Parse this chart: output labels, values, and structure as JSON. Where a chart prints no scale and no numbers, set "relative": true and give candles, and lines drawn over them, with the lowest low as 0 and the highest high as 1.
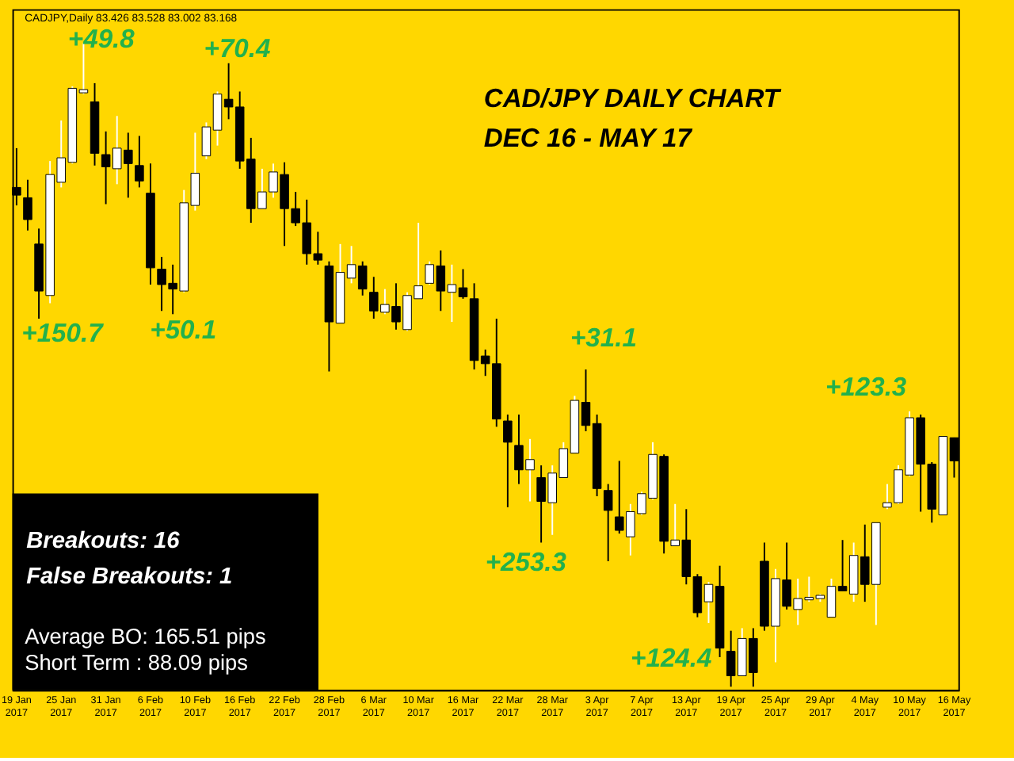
{
  "chart_data": {
    "type": "candlestick",
    "relative": true,
    "title": "CAD/JPY DAILY CHART",
    "subtitle": "DEC 16 - MAY 17",
    "categories": [
      "19 Jan 2017",
      null,
      null,
      null,
      "25 Jan 2017",
      null,
      null,
      null,
      "31 Jan 2017",
      null,
      null,
      null,
      "6 Feb 2017",
      null,
      null,
      null,
      "10 Feb 2017",
      null,
      null,
      null,
      "16 Feb 2017",
      null,
      null,
      null,
      "22 Feb 2017",
      null,
      null,
      null,
      "28 Feb 2017",
      null,
      null,
      null,
      "6 Mar 2017",
      null,
      null,
      null,
      "10 Mar 2017",
      null,
      null,
      null,
      "16 Mar 2017",
      null,
      null,
      null,
      "22 Mar 2017",
      null,
      null,
      null,
      "28 Mar 2017",
      null,
      null,
      null,
      "3 Apr 2017",
      null,
      null,
      null,
      "7 Apr 2017",
      null,
      null,
      null,
      "13 Apr 2017",
      null,
      null,
      null,
      "19 Apr 2017",
      null,
      null,
      null,
      "25 Apr 2017",
      null,
      null,
      null,
      "29 Apr 2017",
      null,
      null,
      null,
      "4 May 2017",
      null,
      null,
      null,
      "10 May 2017",
      null,
      null,
      null,
      "16 May 2017"
    ],
    "ohlc": [
      [
        0.776,
        0.837,
        0.748,
        0.764
      ],
      [
        0.76,
        0.788,
        0.709,
        0.726
      ],
      [
        0.688,
        0.712,
        0.572,
        0.615
      ],
      [
        0.608,
        0.817,
        0.596,
        0.796
      ],
      [
        0.784,
        0.88,
        0.776,
        0.822
      ],
      [
        0.815,
        0.933,
        0.813,
        0.93
      ],
      [
        0.923,
        1.0,
        0.921,
        0.928
      ],
      [
        0.909,
        0.938,
        0.81,
        0.829
      ],
      [
        0.827,
        0.863,
        0.75,
        0.808
      ],
      [
        0.805,
        0.887,
        0.781,
        0.837
      ],
      [
        0.834,
        0.861,
        0.76,
        0.813
      ],
      [
        0.81,
        0.856,
        0.776,
        0.786
      ],
      [
        0.767,
        0.813,
        0.625,
        0.651
      ],
      [
        0.649,
        0.668,
        0.584,
        0.625
      ],
      [
        0.627,
        0.656,
        0.579,
        0.618
      ],
      [
        0.615,
        0.772,
        0.613,
        0.752
      ],
      [
        0.748,
        0.861,
        0.74,
        0.798
      ],
      [
        0.825,
        0.877,
        0.82,
        0.87
      ],
      [
        0.865,
        0.925,
        0.841,
        0.921
      ],
      [
        0.913,
        0.969,
        0.882,
        0.901
      ],
      [
        0.901,
        0.925,
        0.805,
        0.817
      ],
      [
        0.82,
        0.853,
        0.721,
        0.743
      ],
      [
        0.743,
        0.805,
        0.743,
        0.769
      ],
      [
        0.769,
        0.813,
        0.76,
        0.8
      ],
      [
        0.796,
        0.815,
        0.685,
        0.743
      ],
      [
        0.743,
        0.769,
        0.716,
        0.721
      ],
      [
        0.721,
        0.757,
        0.656,
        0.673
      ],
      [
        0.673,
        0.707,
        0.656,
        0.663
      ],
      [
        0.654,
        0.661,
        0.49,
        0.567
      ],
      [
        0.565,
        0.688,
        0.565,
        0.644
      ],
      [
        0.635,
        0.685,
        0.627,
        0.656
      ],
      [
        0.654,
        0.661,
        0.608,
        0.618
      ],
      [
        0.613,
        0.637,
        0.572,
        0.584
      ],
      [
        0.582,
        0.618,
        0.579,
        0.594
      ],
      [
        0.591,
        0.627,
        0.555,
        0.567
      ],
      [
        0.555,
        0.613,
        0.553,
        0.608
      ],
      [
        0.603,
        0.721,
        0.603,
        0.623
      ],
      [
        0.627,
        0.661,
        0.625,
        0.656
      ],
      [
        0.654,
        0.678,
        0.584,
        0.615
      ],
      [
        0.613,
        0.656,
        0.567,
        0.625
      ],
      [
        0.62,
        0.649,
        0.603,
        0.606
      ],
      [
        0.603,
        0.627,
        0.493,
        0.507
      ],
      [
        0.514,
        0.524,
        0.483,
        0.502
      ],
      [
        0.502,
        0.572,
        0.404,
        0.416
      ],
      [
        0.413,
        0.423,
        0.279,
        0.38
      ],
      [
        0.375,
        0.423,
        0.315,
        0.337
      ],
      [
        0.337,
        0.385,
        0.288,
        0.353
      ],
      [
        0.325,
        0.344,
        0.224,
        0.288
      ],
      [
        0.286,
        0.344,
        0.236,
        0.332
      ],
      [
        0.325,
        0.38,
        0.325,
        0.37
      ],
      [
        0.363,
        0.452,
        0.363,
        0.445
      ],
      [
        0.442,
        0.493,
        0.397,
        0.406
      ],
      [
        0.409,
        0.423,
        0.296,
        0.308
      ],
      [
        0.305,
        0.315,
        0.195,
        0.274
      ],
      [
        0.264,
        0.351,
        0.238,
        0.243
      ],
      [
        0.233,
        0.284,
        0.204,
        0.272
      ],
      [
        0.269,
        0.303,
        0.267,
        0.3
      ],
      [
        0.293,
        0.38,
        0.291,
        0.361
      ],
      [
        0.358,
        0.361,
        0.207,
        0.226
      ],
      [
        0.219,
        0.284,
        0.219,
        0.228
      ],
      [
        0.228,
        0.276,
        0.159,
        0.171
      ],
      [
        0.171,
        0.175,
        0.108,
        0.115
      ],
      [
        0.132,
        0.163,
        0.099,
        0.159
      ],
      [
        0.156,
        0.188,
        0.046,
        0.06
      ],
      [
        0.055,
        0.087,
        0.0,
        0.017
      ],
      [
        0.017,
        0.091,
        0.017,
        0.075
      ],
      [
        0.075,
        0.091,
        0.0,
        0.022
      ],
      [
        0.195,
        0.224,
        0.087,
        0.094
      ],
      [
        0.094,
        0.183,
        0.038,
        0.168
      ],
      [
        0.166,
        0.224,
        0.12,
        0.125
      ],
      [
        0.12,
        0.168,
        0.096,
        0.137
      ],
      [
        0.135,
        0.171,
        0.132,
        0.139
      ],
      [
        0.137,
        0.144,
        0.132,
        0.142
      ],
      [
        0.108,
        0.168,
        0.108,
        0.156
      ],
      [
        0.156,
        0.228,
        0.149,
        0.149
      ],
      [
        0.144,
        0.224,
        0.132,
        0.204
      ],
      [
        0.202,
        0.252,
        0.132,
        0.159
      ],
      [
        0.159,
        0.255,
        0.096,
        0.255
      ],
      [
        0.279,
        0.315,
        0.276,
        0.286
      ],
      [
        0.286,
        0.344,
        0.284,
        0.337
      ],
      [
        0.329,
        0.428,
        0.327,
        0.418
      ],
      [
        0.418,
        0.423,
        0.272,
        0.346
      ],
      [
        0.346,
        0.349,
        0.255,
        0.276
      ],
      [
        0.267,
        0.389,
        0.267,
        0.389
      ],
      [
        0.387,
        0.387,
        0.325,
        0.351
      ]
    ],
    "colors": [
      "#000000",
      "#000000",
      "#000000",
      "#ffffff",
      "#ffffff",
      "#ffffff",
      "#ffffff",
      "#000000",
      "#000000",
      "#ffffff",
      "#000000",
      "#000000",
      "#000000",
      "#000000",
      "#000000",
      "#ffffff",
      "#ffffff",
      "#ffffff",
      "#ffffff",
      "#000000",
      "#000000",
      "#000000",
      "#ffffff",
      "#ffffff",
      "#000000",
      "#000000",
      "#000000",
      "#000000",
      "#000000",
      "#ffffff",
      "#ffffff",
      "#000000",
      "#000000",
      "#ffffff",
      "#000000",
      "#ffffff",
      "#ffffff",
      "#ffffff",
      "#000000",
      "#ffffff",
      "#000000",
      "#000000",
      "#000000",
      "#000000",
      "#000000",
      "#000000",
      "#ffffff",
      "#000000",
      "#ffffff",
      "#ffffff",
      "#ffffff",
      "#000000",
      "#000000",
      "#000000",
      "#000000",
      "#ffffff",
      "#ffffff",
      "#ffffff",
      "#000000",
      "#ffffff",
      "#000000",
      "#000000",
      "#ffffff",
      "#000000",
      "#000000",
      "#ffffff",
      "#000000",
      "#000000",
      "#ffffff",
      "#000000",
      "#ffffff",
      "#ffffff",
      "#ffffff",
      "#ffffff",
      "#000000",
      "#ffffff",
      "#000000",
      "#ffffff",
      "#ffffff",
      "#ffffff",
      "#ffffff",
      "#000000",
      "#000000",
      "#ffffff",
      "#000000"
    ],
    "annotations": [
      "CADJPY,Daily 83.426 83.528 83.002 83.168",
      "+49.8",
      "+70.4",
      "+150.7",
      "+50.1",
      "+31.1",
      "+253.3",
      "+123.3",
      "+124.4",
      "Breakouts: 16",
      "False Breakouts: 1",
      "Average BO: 165.51 pips",
      "Short Term  : 88.09 pips"
    ]
  }
}
